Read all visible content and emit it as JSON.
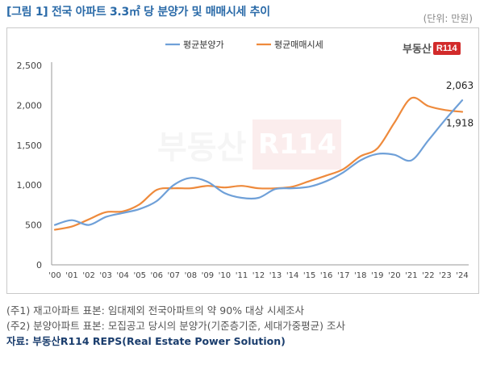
{
  "header": {
    "title": "[그림 1] 전국 아파트 3.3㎡ 당 분양가 및 매매시세 추이",
    "unit": "(단위: 만원)"
  },
  "logo": {
    "text": "부동산",
    "badge": "R114"
  },
  "colors": {
    "presale": "#6fa0d8",
    "market": "#ee8a3c",
    "title": "#2a6aa8",
    "source": "#1a3d6d"
  },
  "chart_data": {
    "type": "line",
    "title": "전국 아파트 3.3㎡ 당 분양가 및 매매시세 추이",
    "xlabel": "",
    "ylabel": "만원",
    "ylim": [
      0,
      2500
    ],
    "yticks": [
      0,
      500,
      1000,
      1500,
      2000,
      2500
    ],
    "ytick_labels": [
      "0",
      "500",
      "1,000",
      "1,500",
      "2,000",
      "2,500"
    ],
    "categories": [
      "'00",
      "'01",
      "'02",
      "'03",
      "'04",
      "'05",
      "'06",
      "'07",
      "'08",
      "'09",
      "'10",
      "'11",
      "'12",
      "'13",
      "'14",
      "'15",
      "'16",
      "'17",
      "'18",
      "'19",
      "'20",
      "'21",
      "'22",
      "'23",
      "'24"
    ],
    "legend_position": "top-center",
    "grid": false,
    "series": [
      {
        "name": "평균분양가",
        "values": [
          500,
          560,
          500,
          600,
          650,
          700,
          800,
          1000,
          1090,
          1040,
          900,
          840,
          840,
          950,
          960,
          980,
          1050,
          1160,
          1310,
          1390,
          1380,
          1310,
          1560,
          1820,
          2063
        ]
      },
      {
        "name": "평균매매시세",
        "values": [
          440,
          480,
          570,
          660,
          670,
          760,
          940,
          960,
          960,
          990,
          970,
          990,
          960,
          960,
          980,
          1050,
          1120,
          1200,
          1360,
          1460,
          1780,
          2090,
          1990,
          1940,
          1918
        ]
      }
    ],
    "annotations": [
      {
        "series": "평균분양가",
        "category": "'24",
        "label": "2,063"
      },
      {
        "series": "평균매매시세",
        "category": "'24",
        "label": "1,918"
      }
    ]
  },
  "notes": {
    "n1": "(주1) 재고아파트 표본: 임대제외 전국아파트의 약 90% 대상 시세조사",
    "n2": "(주2) 분양아파트 표본: 모집공고 당시의 분양가(기준층기준, 세대가중평균) 조사",
    "source": "자료: 부동산R114 REPS(Real Estate Power Solution)"
  }
}
